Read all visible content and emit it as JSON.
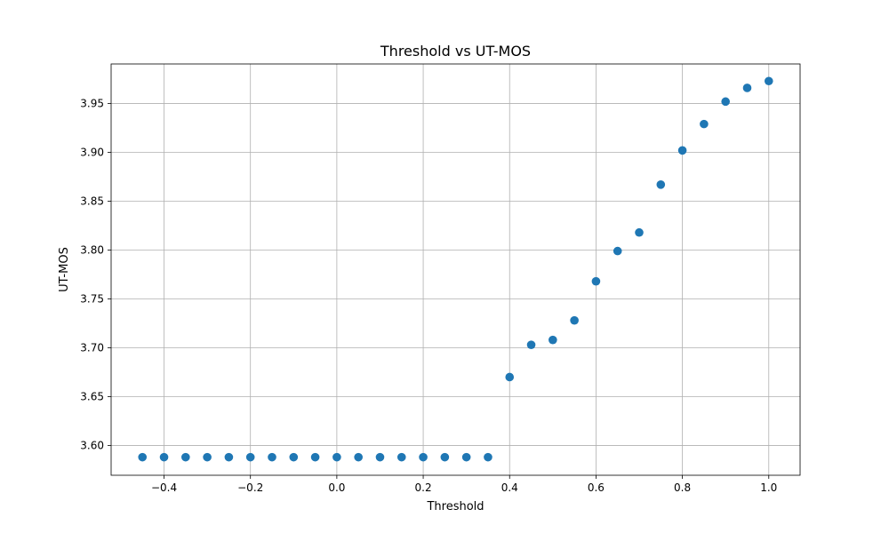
{
  "chart_data": {
    "type": "scatter",
    "title": "Threshold vs UT-MOS",
    "xlabel": "Threshold",
    "ylabel": "UT-MOS",
    "xlim": [
      -0.5225,
      1.0725
    ],
    "ylim": [
      3.5695,
      3.9905
    ],
    "xticks": [
      -0.4,
      -0.2,
      0.0,
      0.2,
      0.4,
      0.6,
      0.8,
      1.0
    ],
    "xtick_labels": [
      "−0.4",
      "−0.2",
      "0.0",
      "0.2",
      "0.4",
      "0.6",
      "0.8",
      "1.0"
    ],
    "yticks": [
      3.6,
      3.65,
      3.7,
      3.75,
      3.8,
      3.85,
      3.9,
      3.95
    ],
    "ytick_labels": [
      "3.60",
      "3.65",
      "3.70",
      "3.75",
      "3.80",
      "3.85",
      "3.90",
      "3.95"
    ],
    "grid": true,
    "color": "#1f77b4",
    "x": [
      -0.45,
      -0.4,
      -0.35,
      -0.3,
      -0.25,
      -0.2,
      -0.15,
      -0.1,
      -0.05,
      0.0,
      0.05,
      0.1,
      0.15,
      0.2,
      0.25,
      0.3,
      0.35,
      0.4,
      0.45,
      0.5,
      0.55,
      0.6,
      0.65,
      0.7,
      0.75,
      0.8,
      0.85,
      0.9,
      0.95,
      1.0
    ],
    "y": [
      3.588,
      3.588,
      3.588,
      3.588,
      3.588,
      3.588,
      3.588,
      3.588,
      3.588,
      3.588,
      3.588,
      3.588,
      3.588,
      3.588,
      3.588,
      3.588,
      3.588,
      3.67,
      3.703,
      3.708,
      3.728,
      3.768,
      3.799,
      3.818,
      3.867,
      3.902,
      3.929,
      3.952,
      3.966,
      3.973
    ]
  }
}
